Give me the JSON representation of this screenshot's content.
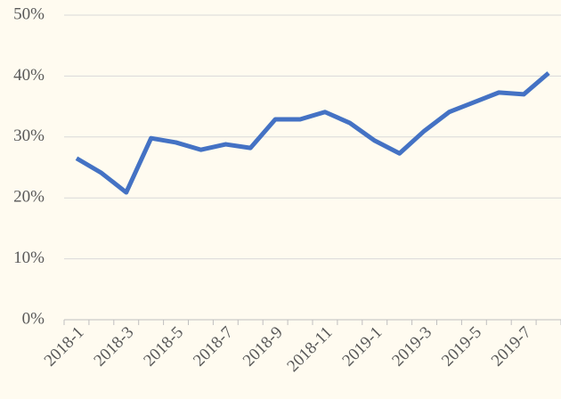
{
  "chart_data": {
    "type": "line",
    "categories": [
      "2018-1",
      null,
      "2018-3",
      null,
      "2018-5",
      null,
      "2018-7",
      null,
      "2018-9",
      null,
      "2018-11",
      null,
      "2019-1",
      null,
      "2019-3",
      null,
      "2019-5",
      null,
      "2019-7",
      null
    ],
    "series": [
      {
        "color": "#4472c4",
        "values": [
          26.5,
          24.1,
          20.9,
          29.8,
          29.1,
          27.9,
          28.8,
          28.2,
          32.9,
          32.9,
          34.1,
          32.3,
          29.4,
          27.3,
          31.0,
          34.1,
          35.7,
          37.3,
          37.0,
          40.5
        ]
      }
    ],
    "ylim": [
      0,
      50
    ],
    "yticks": [
      {
        "value": 0,
        "label": "0%"
      },
      {
        "value": 10,
        "label": "10%"
      },
      {
        "value": 20,
        "label": "20%"
      },
      {
        "value": 30,
        "label": "30%"
      },
      {
        "value": 40,
        "label": "40%"
      },
      {
        "value": 50,
        "label": "50%"
      }
    ],
    "grid": true
  }
}
